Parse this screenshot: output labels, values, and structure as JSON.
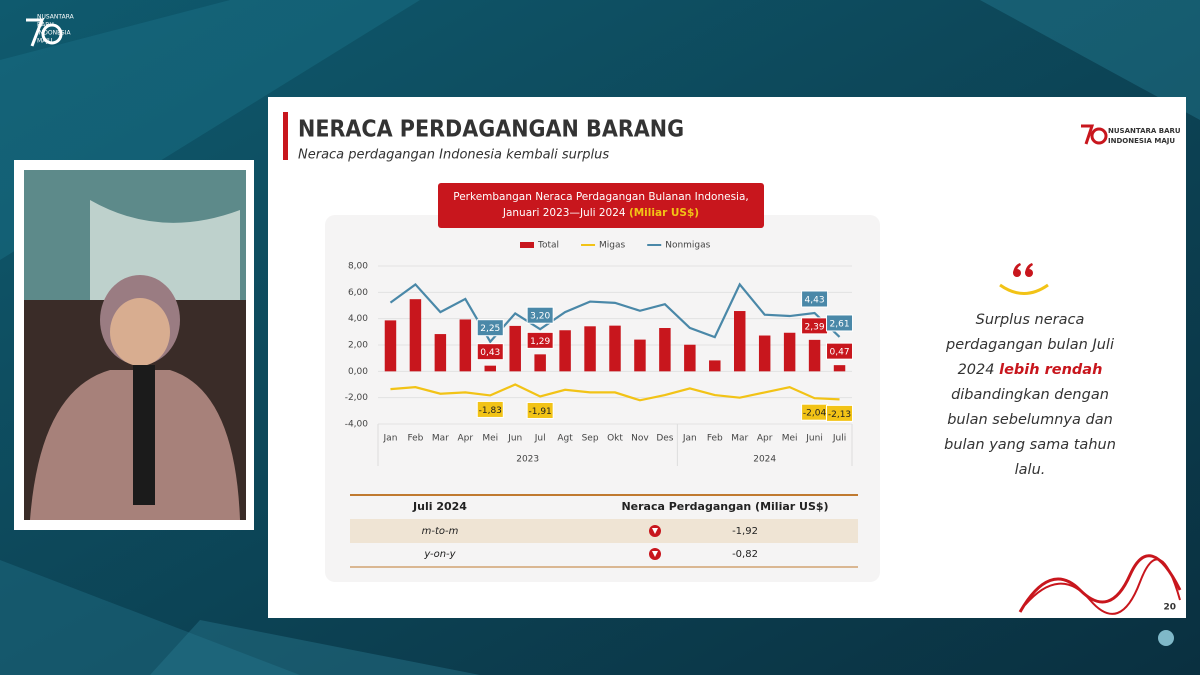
{
  "overlay_logo": [
    "NUSANTARA",
    "BARU",
    "INDONESIA",
    "MAJU"
  ],
  "slide": {
    "title": "NERACA PERDAGANGAN BARANG",
    "subtitle": "Neraca perdagangan Indonesia kembali surplus",
    "logo": [
      "NUSANTARA BARU",
      "INDONESIA MAJU"
    ],
    "page_number": "20"
  },
  "chart_data": {
    "type": "combo",
    "title_lines": [
      "Perkembangan Neraca Perdagangan Bulanan Indonesia,",
      "Januari 2023—Juli 2024"
    ],
    "title_unit": "(Miliar US$)",
    "categories": [
      "Jan",
      "Feb",
      "Mar",
      "Apr",
      "Mei",
      "Jun",
      "Jul",
      "Agt",
      "Sep",
      "Okt",
      "Nov",
      "Des",
      "Jan",
      "Feb",
      "Mar",
      "Apr",
      "Mei",
      "Juni",
      "Juli"
    ],
    "x_groups": [
      "2023",
      "2024"
    ],
    "ylim": [
      -4,
      8
    ],
    "yticks": [
      {
        "value": -4,
        "label": "-4,00"
      },
      {
        "value": -2,
        "label": "-2,00"
      },
      {
        "value": 0,
        "label": "0,00"
      },
      {
        "value": 2,
        "label": "2,00"
      },
      {
        "value": 4,
        "label": "4,00"
      },
      {
        "value": 6,
        "label": "6,00"
      },
      {
        "value": 8,
        "label": "8,00"
      }
    ],
    "grid": true,
    "legend": "top",
    "series": [
      {
        "name": "Total",
        "type": "bar",
        "color": "#c8161d",
        "values": [
          3.87,
          5.48,
          2.83,
          3.94,
          0.43,
          3.45,
          1.29,
          3.12,
          3.42,
          3.47,
          2.41,
          3.29,
          2.02,
          0.83,
          4.58,
          2.72,
          2.93,
          2.39,
          0.47
        ],
        "value_labels": [
          null,
          null,
          null,
          null,
          "0,43",
          null,
          "1,29",
          null,
          null,
          null,
          null,
          null,
          null,
          null,
          null,
          null,
          null,
          "2,39",
          "0,47"
        ]
      },
      {
        "name": "Migas",
        "type": "line",
        "color": "#f2c316",
        "values": [
          -1.35,
          -1.2,
          -1.7,
          -1.6,
          -1.83,
          -1.0,
          -1.91,
          -1.4,
          -1.6,
          -1.6,
          -2.2,
          -1.8,
          -1.3,
          -1.8,
          -2.0,
          -1.6,
          -1.2,
          -2.04,
          -2.13
        ],
        "value_labels": [
          null,
          null,
          null,
          null,
          "-1,83",
          null,
          "-1,91",
          null,
          null,
          null,
          null,
          null,
          null,
          null,
          null,
          null,
          null,
          "-2,04",
          "-2,13"
        ]
      },
      {
        "name": "Nonmigas",
        "type": "line",
        "color": "#4a88a8",
        "values": [
          5.22,
          6.6,
          4.5,
          5.5,
          2.25,
          4.4,
          3.2,
          4.5,
          5.3,
          5.2,
          4.6,
          5.1,
          3.3,
          2.6,
          6.6,
          4.3,
          4.2,
          4.43,
          2.61
        ],
        "value_labels": [
          null,
          null,
          null,
          null,
          "2,25",
          null,
          "3,20",
          null,
          null,
          null,
          null,
          null,
          null,
          null,
          null,
          null,
          null,
          "4,43",
          "2,61"
        ]
      }
    ]
  },
  "table": {
    "header": [
      "Juli 2024",
      "Neraca Perdagangan (Miliar US$)"
    ],
    "rows": [
      [
        "m-to-m",
        "-1,92"
      ],
      [
        "y-on-y",
        "-0,82"
      ]
    ]
  },
  "quote": {
    "before": "Surplus neraca perdagangan bulan Juli 2024",
    "emphasis": "lebih rendah",
    "after": "dibandingkan dengan bulan sebelumnya dan bulan yang sama tahun lalu."
  }
}
